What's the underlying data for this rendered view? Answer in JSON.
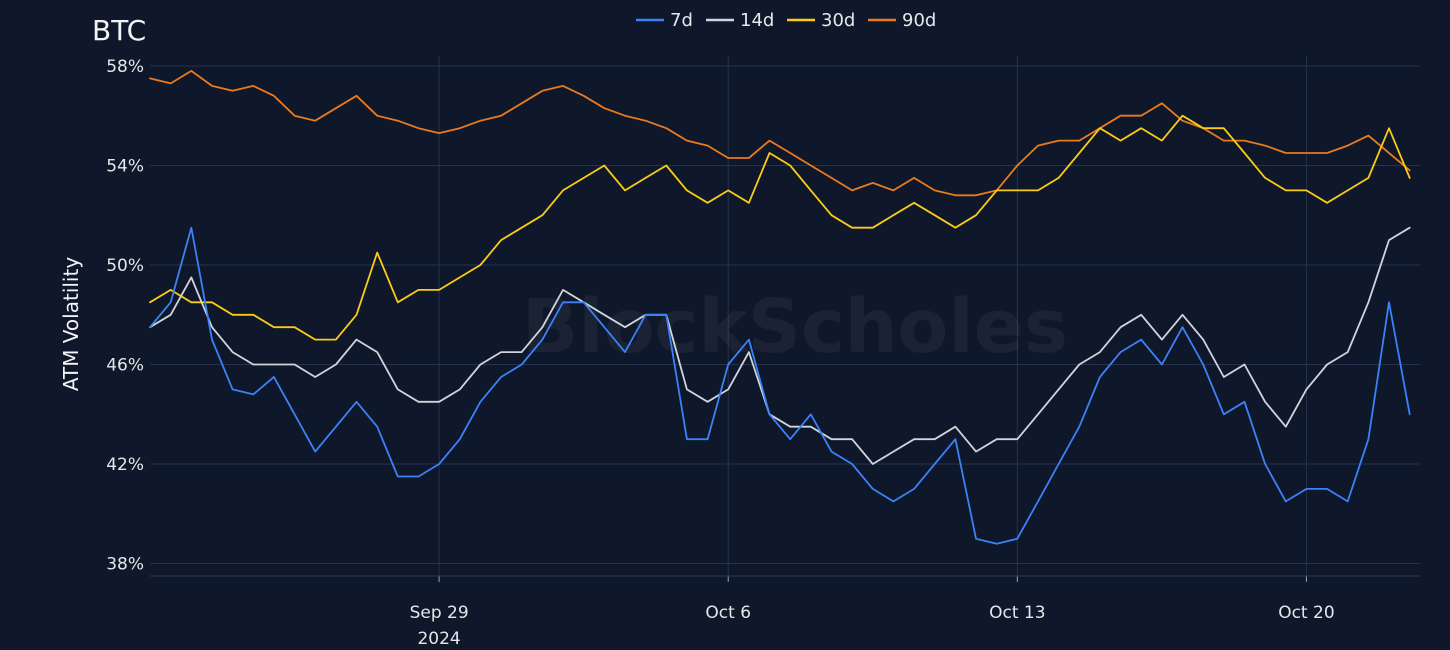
{
  "chart_data": {
    "type": "line",
    "title": "BTC",
    "ylabel": "ATM Volatility",
    "xlabel": "",
    "watermark": "BlockScholes",
    "x_range": [
      "2024-09-22",
      "2024-10-22T18:00"
    ],
    "ylim": [
      37.5,
      58.4
    ],
    "y_ticks": [
      38,
      42,
      46,
      50,
      54,
      58
    ],
    "y_tick_labels": [
      "38%",
      "42%",
      "46%",
      "50%",
      "54%",
      "58%"
    ],
    "x_ticks": [
      "2024-09-29",
      "2024-10-06",
      "2024-10-13",
      "2024-10-20"
    ],
    "x_tick_labels": [
      "Sep 29",
      "Oct 6",
      "Oct 13",
      "Oct 20"
    ],
    "x_year_label": "2024",
    "grid": true,
    "legend_position": "top-center",
    "background": "#0f172a",
    "series": [
      {
        "name": "7d",
        "color": "#3b82f6",
        "x": [
          "2024-09-22",
          "2024-09-22T12:00",
          "2024-09-23",
          "2024-09-23T12:00",
          "2024-09-24",
          "2024-09-24T12:00",
          "2024-09-25",
          "2024-09-25T12:00",
          "2024-09-26",
          "2024-09-26T12:00",
          "2024-09-27",
          "2024-09-27T12:00",
          "2024-09-28",
          "2024-09-28T12:00",
          "2024-09-29",
          "2024-09-29T12:00",
          "2024-09-30",
          "2024-09-30T12:00",
          "2024-10-01",
          "2024-10-01T12:00",
          "2024-10-02",
          "2024-10-02T12:00",
          "2024-10-03",
          "2024-10-03T12:00",
          "2024-10-04",
          "2024-10-04T12:00",
          "2024-10-05",
          "2024-10-05T12:00",
          "2024-10-06",
          "2024-10-06T12:00",
          "2024-10-07",
          "2024-10-07T12:00",
          "2024-10-08",
          "2024-10-08T12:00",
          "2024-10-09",
          "2024-10-09T12:00",
          "2024-10-10",
          "2024-10-10T12:00",
          "2024-10-11",
          "2024-10-11T12:00",
          "2024-10-12",
          "2024-10-12T12:00",
          "2024-10-13",
          "2024-10-13T12:00",
          "2024-10-14",
          "2024-10-14T12:00",
          "2024-10-15",
          "2024-10-15T12:00",
          "2024-10-16",
          "2024-10-16T12:00",
          "2024-10-17",
          "2024-10-17T12:00",
          "2024-10-18",
          "2024-10-18T12:00",
          "2024-10-19",
          "2024-10-19T12:00",
          "2024-10-20",
          "2024-10-20T12:00",
          "2024-10-21",
          "2024-10-21T12:00",
          "2024-10-22",
          "2024-10-22T12:00"
        ],
        "values": [
          47.5,
          48.5,
          51.5,
          47,
          45,
          44.8,
          45.5,
          44,
          42.5,
          43.5,
          44.5,
          43.5,
          41.5,
          41.5,
          42,
          43,
          44.5,
          45.5,
          46,
          47,
          48.5,
          48.5,
          47.5,
          46.5,
          48,
          48,
          43,
          43,
          46,
          47,
          44,
          43,
          44,
          42.5,
          42,
          41,
          40.5,
          41,
          42,
          43,
          39,
          38.8,
          39,
          40.5,
          42,
          43.5,
          45.5,
          46.5,
          47,
          46,
          47.5,
          46,
          44,
          44.5,
          42,
          40.5,
          41,
          41,
          40.5,
          43,
          48.5,
          44
        ]
      },
      {
        "name": "14d",
        "color": "#d1d5db",
        "x": [
          "2024-09-22",
          "2024-09-22T12:00",
          "2024-09-23",
          "2024-09-23T12:00",
          "2024-09-24",
          "2024-09-24T12:00",
          "2024-09-25",
          "2024-09-25T12:00",
          "2024-09-26",
          "2024-09-26T12:00",
          "2024-09-27",
          "2024-09-27T12:00",
          "2024-09-28",
          "2024-09-28T12:00",
          "2024-09-29",
          "2024-09-29T12:00",
          "2024-09-30",
          "2024-09-30T12:00",
          "2024-10-01",
          "2024-10-01T12:00",
          "2024-10-02",
          "2024-10-02T12:00",
          "2024-10-03",
          "2024-10-03T12:00",
          "2024-10-04",
          "2024-10-04T12:00",
          "2024-10-05",
          "2024-10-05T12:00",
          "2024-10-06",
          "2024-10-06T12:00",
          "2024-10-07",
          "2024-10-07T12:00",
          "2024-10-08",
          "2024-10-08T12:00",
          "2024-10-09",
          "2024-10-09T12:00",
          "2024-10-10",
          "2024-10-10T12:00",
          "2024-10-11",
          "2024-10-11T12:00",
          "2024-10-12",
          "2024-10-12T12:00",
          "2024-10-13",
          "2024-10-13T12:00",
          "2024-10-14",
          "2024-10-14T12:00",
          "2024-10-15",
          "2024-10-15T12:00",
          "2024-10-16",
          "2024-10-16T12:00",
          "2024-10-17",
          "2024-10-17T12:00",
          "2024-10-18",
          "2024-10-18T12:00",
          "2024-10-19",
          "2024-10-19T12:00",
          "2024-10-20",
          "2024-10-20T12:00",
          "2024-10-21",
          "2024-10-21T12:00",
          "2024-10-22",
          "2024-10-22T12:00"
        ],
        "values": [
          47.5,
          48,
          49.5,
          47.5,
          46.5,
          46,
          46,
          46,
          45.5,
          46,
          47,
          46.5,
          45,
          44.5,
          44.5,
          45,
          46,
          46.5,
          46.5,
          47.5,
          49,
          48.5,
          48,
          47.5,
          48,
          48,
          45,
          44.5,
          45,
          46.5,
          44,
          43.5,
          43.5,
          43,
          43,
          42,
          42.5,
          43,
          43,
          43.5,
          42.5,
          43,
          43,
          44,
          45,
          46,
          46.5,
          47.5,
          48,
          47,
          48,
          47,
          45.5,
          46,
          44.5,
          43.5,
          45,
          46,
          46.5,
          48.5,
          51,
          51.5
        ]
      },
      {
        "name": "30d",
        "color": "#facc15",
        "x": [
          "2024-09-22",
          "2024-09-22T12:00",
          "2024-09-23",
          "2024-09-23T12:00",
          "2024-09-24",
          "2024-09-24T12:00",
          "2024-09-25",
          "2024-09-25T12:00",
          "2024-09-26",
          "2024-09-26T12:00",
          "2024-09-27",
          "2024-09-27T12:00",
          "2024-09-28",
          "2024-09-28T12:00",
          "2024-09-29",
          "2024-09-29T12:00",
          "2024-09-30",
          "2024-09-30T12:00",
          "2024-10-01",
          "2024-10-01T12:00",
          "2024-10-02",
          "2024-10-02T12:00",
          "2024-10-03",
          "2024-10-03T12:00",
          "2024-10-04",
          "2024-10-04T12:00",
          "2024-10-05",
          "2024-10-05T12:00",
          "2024-10-06",
          "2024-10-06T12:00",
          "2024-10-07",
          "2024-10-07T12:00",
          "2024-10-08",
          "2024-10-08T12:00",
          "2024-10-09",
          "2024-10-09T12:00",
          "2024-10-10",
          "2024-10-10T12:00",
          "2024-10-11",
          "2024-10-11T12:00",
          "2024-10-12",
          "2024-10-12T12:00",
          "2024-10-13",
          "2024-10-13T12:00",
          "2024-10-14",
          "2024-10-14T12:00",
          "2024-10-15",
          "2024-10-15T12:00",
          "2024-10-16",
          "2024-10-16T12:00",
          "2024-10-17",
          "2024-10-17T12:00",
          "2024-10-18",
          "2024-10-18T12:00",
          "2024-10-19",
          "2024-10-19T12:00",
          "2024-10-20",
          "2024-10-20T12:00",
          "2024-10-21",
          "2024-10-21T12:00",
          "2024-10-22",
          "2024-10-22T12:00"
        ],
        "values": [
          48.5,
          49,
          48.5,
          48.5,
          48,
          48,
          47.5,
          47.5,
          47,
          47,
          48,
          50.5,
          48.5,
          49,
          49,
          49.5,
          50,
          51,
          51.5,
          52,
          53,
          53.5,
          54,
          53,
          53.5,
          54,
          53,
          52.5,
          53,
          52.5,
          54.5,
          54,
          53,
          52,
          51.5,
          51.5,
          52,
          52.5,
          52,
          51.5,
          52,
          53,
          53,
          53,
          53.5,
          54.5,
          55.5,
          55,
          55.5,
          55,
          56,
          55.5,
          55.5,
          54.5,
          53.5,
          53,
          53,
          52.5,
          53,
          53.5,
          55.5,
          53.5
        ]
      },
      {
        "name": "90d",
        "color": "#ea7a1e",
        "x": [
          "2024-09-22",
          "2024-09-22T12:00",
          "2024-09-23",
          "2024-09-23T12:00",
          "2024-09-24",
          "2024-09-24T12:00",
          "2024-09-25",
          "2024-09-25T12:00",
          "2024-09-26",
          "2024-09-26T12:00",
          "2024-09-27",
          "2024-09-27T12:00",
          "2024-09-28",
          "2024-09-28T12:00",
          "2024-09-29",
          "2024-09-29T12:00",
          "2024-09-30",
          "2024-09-30T12:00",
          "2024-10-01",
          "2024-10-01T12:00",
          "2024-10-02",
          "2024-10-02T12:00",
          "2024-10-03",
          "2024-10-03T12:00",
          "2024-10-04",
          "2024-10-04T12:00",
          "2024-10-05",
          "2024-10-05T12:00",
          "2024-10-06",
          "2024-10-06T12:00",
          "2024-10-07",
          "2024-10-07T12:00",
          "2024-10-08",
          "2024-10-08T12:00",
          "2024-10-09",
          "2024-10-09T12:00",
          "2024-10-10",
          "2024-10-10T12:00",
          "2024-10-11",
          "2024-10-11T12:00",
          "2024-10-12",
          "2024-10-12T12:00",
          "2024-10-13",
          "2024-10-13T12:00",
          "2024-10-14",
          "2024-10-14T12:00",
          "2024-10-15",
          "2024-10-15T12:00",
          "2024-10-16",
          "2024-10-16T12:00",
          "2024-10-17",
          "2024-10-17T12:00",
          "2024-10-18",
          "2024-10-18T12:00",
          "2024-10-19",
          "2024-10-19T12:00",
          "2024-10-20",
          "2024-10-20T12:00",
          "2024-10-21",
          "2024-10-21T12:00",
          "2024-10-22",
          "2024-10-22T12:00"
        ],
        "values": [
          57.5,
          57.3,
          57.8,
          57.2,
          57,
          57.2,
          56.8,
          56,
          55.8,
          56.3,
          56.8,
          56,
          55.8,
          55.5,
          55.3,
          55.5,
          55.8,
          56,
          56.5,
          57,
          57.2,
          56.8,
          56.3,
          56,
          55.8,
          55.5,
          55,
          54.8,
          54.3,
          54.3,
          55,
          54.5,
          54,
          53.5,
          53,
          53.3,
          53,
          53.5,
          53,
          52.8,
          52.8,
          53,
          54,
          54.8,
          55,
          55,
          55.5,
          56,
          56,
          56.5,
          55.8,
          55.5,
          55,
          55,
          54.8,
          54.5,
          54.5,
          54.5,
          54.8,
          55.2,
          54.5,
          53.8
        ]
      }
    ]
  }
}
